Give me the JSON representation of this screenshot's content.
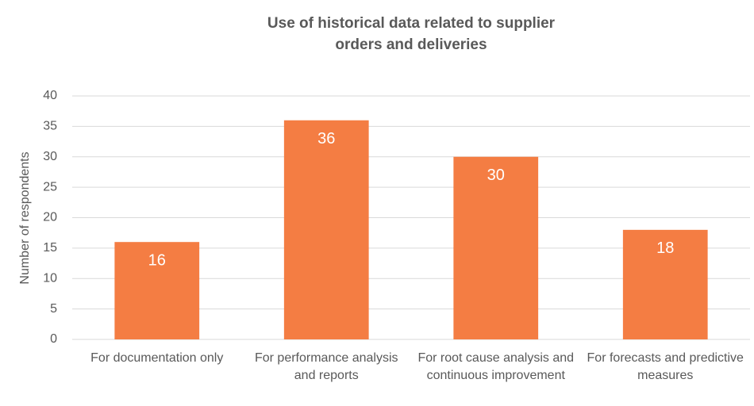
{
  "chart_data": {
    "type": "bar",
    "title": "Use of historical data related to supplier orders and deliveries",
    "y_label": "Number of respondents",
    "categories": [
      "For documentation only",
      "For performance analysis and reports",
      "For root cause analysis and continuous improvement",
      "For forecasts and predictive measures"
    ],
    "values": [
      16,
      36,
      30,
      18
    ],
    "color": "#f47d43",
    "ylim": [
      0,
      40
    ],
    "yticks": [
      0,
      5,
      10,
      15,
      20,
      25,
      30,
      35,
      40
    ],
    "grid": true
  }
}
